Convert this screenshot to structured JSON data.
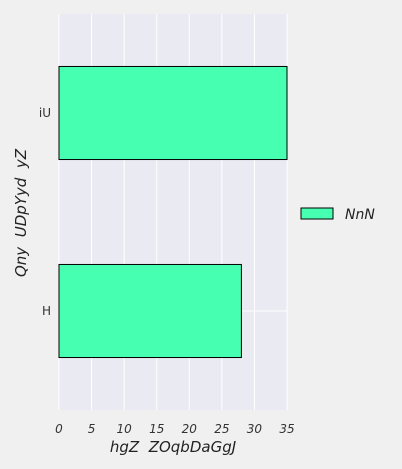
{
  "chart_data": {
    "type": "bar",
    "orientation": "horizontal",
    "categories": [
      "iU",
      "H"
    ],
    "series": [
      {
        "name": "NnN",
        "values": [
          35,
          28
        ],
        "color": "#47ffb1"
      }
    ],
    "xlabel": "hgZ  ZOqbDaGgJ",
    "ylabel": "Qny  UDpYyd  yZ",
    "xlim": [
      0,
      35
    ],
    "xticks": [
      "0",
      "5",
      "10",
      "15",
      "20",
      "25",
      "30",
      "35"
    ],
    "grid": true,
    "legend_position": "right",
    "background": "#e9eaf2",
    "figure_background": "#f0f0f0"
  }
}
